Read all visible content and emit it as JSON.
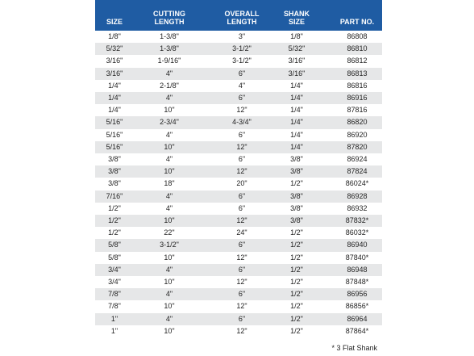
{
  "table": {
    "header": [
      [
        "SIZE"
      ],
      [
        "CUTTING",
        "LENGTH"
      ],
      [
        "OVERALL",
        "LENGTH"
      ],
      [
        "SHANK",
        "SIZE"
      ],
      [
        "PART NO."
      ]
    ],
    "rows": [
      [
        "1/8\"",
        "1-3/8\"",
        "3\"",
        "1/8\"",
        "86808"
      ],
      [
        "5/32\"",
        "1-3/8\"",
        "3-1/2\"",
        "5/32\"",
        "86810"
      ],
      [
        "3/16\"",
        "1-9/16\"",
        "3-1/2\"",
        "3/16\"",
        "86812"
      ],
      [
        "3/16\"",
        "4\"",
        "6\"",
        "3/16\"",
        "86813"
      ],
      [
        "1/4\"",
        "2-1/8\"",
        "4\"",
        "1/4\"",
        "86816"
      ],
      [
        "1/4\"",
        "4\"",
        "6\"",
        "1/4\"",
        "86916"
      ],
      [
        "1/4\"",
        "10\"",
        "12\"",
        "1/4\"",
        "87816"
      ],
      [
        "5/16\"",
        "2-3/4\"",
        "4-3/4\"",
        "1/4\"",
        "86820"
      ],
      [
        "5/16\"",
        "4\"",
        "6\"",
        "1/4\"",
        "86920"
      ],
      [
        "5/16\"",
        "10\"",
        "12\"",
        "1/4\"",
        "87820"
      ],
      [
        "3/8\"",
        "4\"",
        "6\"",
        "3/8\"",
        "86924"
      ],
      [
        "3/8\"",
        "10\"",
        "12\"",
        "3/8\"",
        "87824"
      ],
      [
        "3/8\"",
        "18\"",
        "20\"",
        "1/2\"",
        "86024*"
      ],
      [
        "7/16\"",
        "4\"",
        "6\"",
        "3/8\"",
        "86928"
      ],
      [
        "1/2\"",
        "4\"",
        "6\"",
        "3/8\"",
        "86932"
      ],
      [
        "1/2\"",
        "10\"",
        "12\"",
        "3/8\"",
        "87832*"
      ],
      [
        "1/2\"",
        "22\"",
        "24\"",
        "1/2\"",
        "86032*"
      ],
      [
        "5/8\"",
        "3-1/2\"",
        "6\"",
        "1/2\"",
        "86940"
      ],
      [
        "5/8\"",
        "10\"",
        "12\"",
        "1/2\"",
        "87840*"
      ],
      [
        "3/4\"",
        "4\"",
        "6\"",
        "1/2\"",
        "86948"
      ],
      [
        "3/4\"",
        "10\"",
        "12\"",
        "1/2\"",
        "87848*"
      ],
      [
        "7/8\"",
        "4\"",
        "6\"",
        "1/2\"",
        "86956"
      ],
      [
        "7/8\"",
        "10\"",
        "12\"",
        "1/2\"",
        "86856*"
      ],
      [
        "1\"",
        "4\"",
        "6\"",
        "1/2\"",
        "86964"
      ],
      [
        "1\"",
        "10\"",
        "12\"",
        "1/2\"",
        "87864*"
      ]
    ]
  },
  "footnote": "* 3 Flat Shank"
}
